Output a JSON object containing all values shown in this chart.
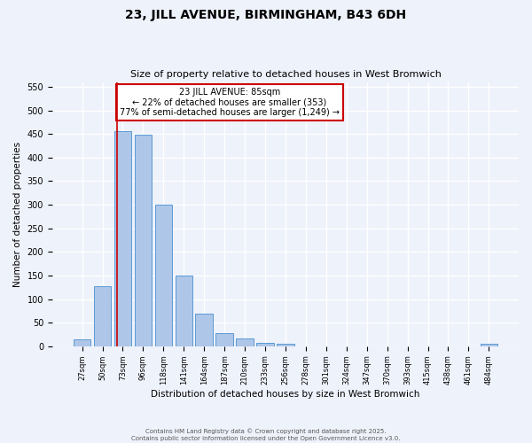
{
  "title": "23, JILL AVENUE, BIRMINGHAM, B43 6DH",
  "subtitle": "Size of property relative to detached houses in West Bromwich",
  "xlabel": "Distribution of detached houses by size in West Bromwich",
  "ylabel": "Number of detached properties",
  "bar_labels": [
    "27sqm",
    "50sqm",
    "73sqm",
    "96sqm",
    "118sqm",
    "141sqm",
    "164sqm",
    "187sqm",
    "210sqm",
    "233sqm",
    "256sqm",
    "278sqm",
    "301sqm",
    "324sqm",
    "347sqm",
    "370sqm",
    "393sqm",
    "415sqm",
    "438sqm",
    "461sqm",
    "484sqm"
  ],
  "bar_values": [
    15,
    128,
    455,
    448,
    300,
    150,
    70,
    28,
    17,
    8,
    5,
    0,
    0,
    0,
    0,
    0,
    0,
    0,
    0,
    0,
    5
  ],
  "bar_color": "#aec6e8",
  "bar_edge_color": "#5b9bd5",
  "ylim": [
    0,
    560
  ],
  "yticks": [
    0,
    50,
    100,
    150,
    200,
    250,
    300,
    350,
    400,
    450,
    500,
    550
  ],
  "annotation_title": "23 JILL AVENUE: 85sqm",
  "annotation_line1": "← 22% of detached houses are smaller (353)",
  "annotation_line2": "77% of semi-detached houses are larger (1,249) →",
  "property_line_bin": 1.72,
  "box_color": "#cc0000",
  "footer_line1": "Contains HM Land Registry data © Crown copyright and database right 2025.",
  "footer_line2": "Contains public sector information licensed under the Open Government Licence v3.0.",
  "background_color": "#eef2fb",
  "grid_color": "#ffffff"
}
